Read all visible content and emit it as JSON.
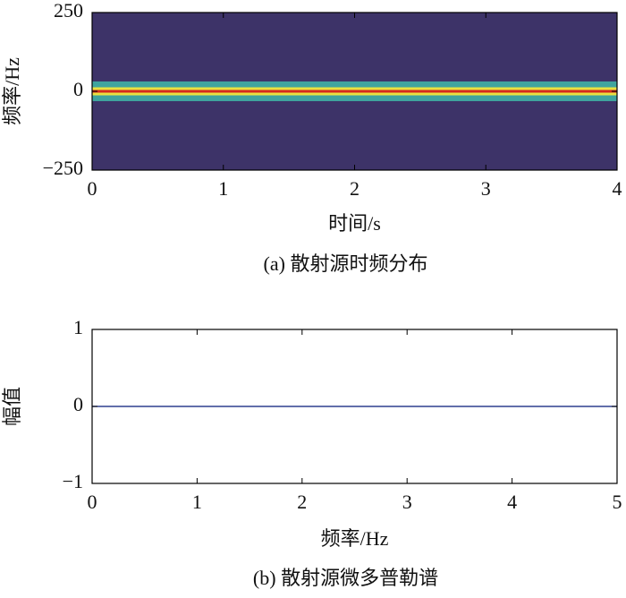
{
  "chart_data": [
    {
      "type": "spectrogram",
      "caption": "(a) 散射源时频分布",
      "xlabel": "时间/s",
      "ylabel": "频率/Hz",
      "x": [
        0,
        4
      ],
      "values": [
        0,
        0
      ],
      "background_color": "#3d3368",
      "colors": [
        "#3fb8a8",
        "#e8e040",
        "#d42a1e"
      ],
      "xlim": [
        0,
        4
      ],
      "ylim": [
        -250,
        250
      ],
      "xticks": [
        0,
        1,
        2,
        3,
        4
      ],
      "yticks": [
        {
          "value": -250,
          "label": "−250"
        },
        0,
        250
      ]
    },
    {
      "type": "line",
      "caption": "(b) 散射源微多普勒谱",
      "xlabel": "频率/Hz",
      "ylabel": "幅值",
      "x": [
        0,
        5
      ],
      "values": [
        0,
        0
      ],
      "color": "#2e3f8f",
      "xlim": [
        0,
        5
      ],
      "ylim": [
        -1,
        1
      ],
      "xticks": [
        0,
        1,
        2,
        3,
        4,
        5
      ],
      "yticks": [
        {
          "value": -1,
          "label": "−1"
        },
        0,
        1
      ]
    }
  ]
}
